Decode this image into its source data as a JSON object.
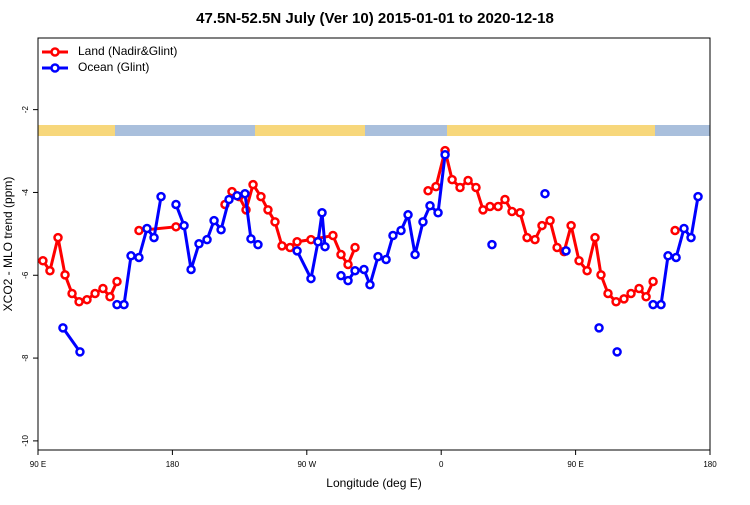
{
  "chart_data": {
    "type": "line",
    "title": "47.5N-52.5N July (Ver 10)   2015-01-01 to 2020-12-18",
    "x_label": "Longitude (deg E)",
    "y_label": "XCO2 - MLO trend (ppm)",
    "xlim": [
      90,
      540
    ],
    "xticks": [
      {
        "value": 90,
        "label": "90 E"
      },
      180,
      {
        "value": 270,
        "label": "90 W"
      },
      {
        "value": 360,
        "label": "0"
      },
      {
        "value": 450,
        "label": "90 E"
      },
      {
        "value": 540,
        "label": "180"
      }
    ],
    "ylim": [
      -10.22,
      -0.27
    ],
    "yticks": [
      -10,
      -8,
      -6,
      -4,
      -2
    ],
    "legend": "top-left",
    "series": [
      {
        "name": "Land (Nadir&Glint)",
        "color": "#ff0000",
        "x": [
          93.3,
          98.0,
          103.4,
          108.1,
          112.8,
          117.5,
          122.8,
          128.2,
          133.5,
          138.2,
          142.9,
          null,
          157.6,
          182.4,
          null,
          215.2,
          219.9,
          224.6,
          229.3,
          234.0,
          239.3,
          244.0,
          248.7,
          253.4,
          258.8,
          263.5,
          272.8,
          287.5,
          292.9,
          297.6,
          302.3,
          null,
          351.2,
          356.5,
          362.6,
          367.3,
          372.6,
          378.0,
          383.3,
          388.0,
          392.7,
          398.1,
          402.7,
          407.4,
          412.8,
          417.5,
          422.8,
          427.5,
          432.9,
          437.6,
          442.3,
          447.0,
          452.3,
          457.7,
          463.0,
          467.0,
          471.7,
          477.1,
          482.4,
          487.1,
          492.5,
          497.2,
          501.9,
          null,
          516.6
        ],
        "values": [
          -5.65,
          -5.89,
          -5.09,
          -5.99,
          -6.44,
          -6.64,
          -6.59,
          -6.44,
          -6.32,
          -6.52,
          -6.15,
          null,
          -4.92,
          -4.83,
          null,
          -4.29,
          -3.98,
          -4.1,
          -4.42,
          -3.81,
          -4.1,
          -4.42,
          -4.71,
          -5.29,
          -5.33,
          -5.19,
          -5.14,
          -5.04,
          -5.5,
          -5.74,
          -5.33,
          null,
          -3.96,
          -3.86,
          -2.99,
          -3.69,
          -3.88,
          -3.71,
          -3.88,
          -4.42,
          -4.34,
          -4.34,
          -4.17,
          -4.46,
          -4.49,
          -5.09,
          -5.14,
          -4.8,
          -4.68,
          -5.33,
          -5.43,
          -4.8,
          -5.65,
          -5.89,
          -5.09,
          -5.99,
          -6.44,
          -6.64,
          -6.57,
          -6.44,
          -6.32,
          -6.52,
          -6.15,
          null,
          -4.92
        ]
      },
      {
        "name": "Ocean (Glint)",
        "color": "#0000ff",
        "x": [
          106.7,
          118.1,
          null,
          142.9,
          147.6,
          152.3,
          157.6,
          163.0,
          167.7,
          172.4,
          null,
          182.4,
          187.8,
          192.5,
          197.8,
          203.2,
          207.9,
          212.6,
          217.9,
          223.3,
          228.6,
          232.6,
          237.3,
          null,
          263.5,
          272.8,
          277.5,
          280.2,
          282.2,
          null,
          292.9,
          297.6,
          302.3,
          308.3,
          312.3,
          317.7,
          323.1,
          327.7,
          333.1,
          337.8,
          342.5,
          347.8,
          352.5,
          357.9,
          362.6,
          null,
          394.0,
          null,
          429.5,
          null,
          443.6,
          null,
          465.7,
          null,
          477.8,
          null,
          501.9,
          507.2,
          511.9,
          517.3,
          522.6,
          527.3,
          532.0
        ],
        "values": [
          -7.27,
          -7.85,
          null,
          -6.71,
          -6.71,
          -5.53,
          -5.57,
          -4.87,
          -5.09,
          -4.1,
          null,
          -4.29,
          -4.8,
          -5.86,
          -5.24,
          -5.14,
          -4.68,
          -4.9,
          -4.17,
          -4.08,
          -4.03,
          -5.12,
          -5.26,
          null,
          -5.41,
          -6.08,
          -5.19,
          -4.49,
          -5.31,
          null,
          -6.01,
          -6.13,
          -5.89,
          -5.86,
          -6.23,
          -5.55,
          -5.62,
          -5.04,
          -4.92,
          -4.54,
          -5.5,
          -4.71,
          -4.32,
          -4.49,
          -3.09,
          null,
          -5.26,
          null,
          -4.03,
          null,
          -5.41,
          null,
          -7.27,
          null,
          -7.85,
          null,
          -6.71,
          -6.71,
          -5.53,
          -5.57,
          -4.87,
          -5.09,
          -4.1
        ]
      }
    ]
  }
}
